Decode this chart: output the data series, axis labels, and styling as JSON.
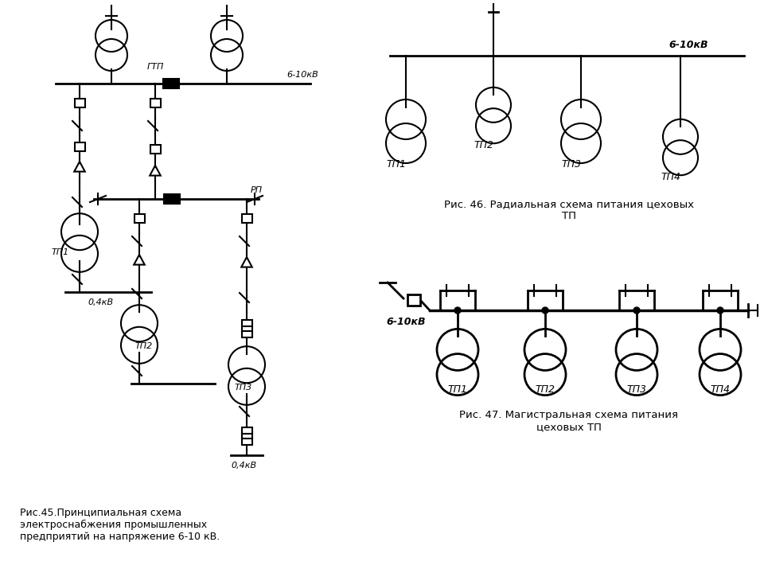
{
  "bg_color": "#ffffff",
  "line_color": "#000000",
  "fig_caption1": "Рис.45.Принципиальная схема\nэлектроснабжения промышленных\nпредприятий на напряжение 6-10 кВ.",
  "fig_caption2": "Рис. 46. Радиальная схема питания цеховых\nТП",
  "fig_caption3": "Рис. 47. Магистральная схема питания\nцеховых ТП",
  "label_gtp": "ГТП",
  "label_rp": "РП",
  "label_6_10kv_1": "6-10кВ",
  "label_6_10kv_2": "6-10кВ",
  "label_6_10kv_3": "6-10кВ",
  "label_0_4kv_1": "0,4кВ",
  "label_0_4kv_2": "0,4кВ",
  "label_tp1_fig45": "ТП1",
  "label_tp2_fig45": "ТП2",
  "label_tp3_fig45": "ТП3",
  "label_tp1_fig46": "ТП1",
  "label_tp2_fig46": "ТП2",
  "label_tp3_fig46": "ТП3",
  "label_tp4_fig46": "ТП4",
  "label_tp1_fig47": "ТП1",
  "label_tp2_fig47": "ТП2",
  "label_tp3_fig47": "ТП3",
  "label_tp4_fig47": "ТП4"
}
